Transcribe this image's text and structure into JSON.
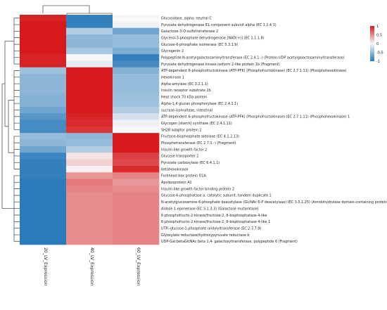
{
  "chart_data": {
    "type": "heatmap",
    "title": "",
    "columns": [
      "20_LV_Expression",
      "40_LV_Expression",
      "60_LV_Expression"
    ],
    "rows": [
      "Glucosidase, alpha; neutral C",
      "Pyruvate dehydrogenase E1 component subunit alpha (EC 1.2.4.1)",
      "Galactose-3-O-sulfotransferase 2",
      "Glycerol-3-phosphate dehydrogenase [NAD(+)] (EC 1.1.1.8)",
      "Glucose-6-phosphate isomerase (EC 5.3.1.9)",
      "Glycogenin 2",
      "Polypeptide N-acetylgalactosaminyltransferase (EC 2.4.1.-) (Protein-UDP acetylgalactosaminyltransferase)",
      "Pyruvate dehydrogenase kinase isoform 2-like protein 1b (Fragment)",
      "ATP-dependent 6-phosphofructokinase (ATP-PFK) (Phosphofructokinase) (EC 2.7.1.11) (Phosphohexokinase)",
      "Hexokinase 1",
      "Alpha-amylase (EC 3.2.1.1)",
      "Insulin receptor substrate 2b",
      "Heat shock 70 kDa protein",
      "Alpha-1,4 glucan phosphorylase (EC 2.4.1.1)",
      "sucrase-isomaltase, intestinal",
      "ATP-dependent 6-phosphofructokinase (ATP-PFK) (Phosphofructokinase) (EC 2.7.1.11) (Phosphohexokinase) 1",
      "Glycogen [starch] synthase (EC 2.4.1.11)",
      "SH2B adaptor protein 2",
      "Fructose-bisphosphate aldolase (EC 4.1.2.13)",
      "Phosphotransferase (EC 2.7.1.-) (Fragment)",
      "Insulin-like growth factor 2",
      "Glucose transporter 2",
      "Pyruvate carboxylase (EC 6.4.1.1)",
      "Ketohexokinase",
      "Forkhead box protein O1A",
      "Apolipoprotein A1",
      "Insulin-like growth factor binding protein 2",
      "Glucose-6-phosphatase a, catalytic subunit, tandem duplicate 1",
      "N-acetylglucosamine-6-phosphate deacetylase (GlcNAc 6-P deacetylase) (EC 3.5.1.25) (Amidohydrolase domain-containing protein 2)",
      "Aldose 1-epimerase (EC 5.1.3.3) (Galactose mutarotase)",
      "6-phosphofructo-2-kinase/fructose-2, 6-bisphosphatase 4-like",
      "6-phosphofructo-2-kinase/fructose-2, 6-bisphosphatase 4-like 1",
      "UTP--glucose-1-phosphate uridylyltransferase (EC 2.7.7.9)",
      "Glyoxylate reductase/hydroxypyruvate reductase b",
      "UDP-Gal:betaGlcNAc beta 1,4- galactosyltransferase, polypeptide 6 (Fragment)"
    ],
    "values": [
      [
        1.1,
        -1.1,
        0.0
      ],
      [
        1.15,
        -1.1,
        -0.05
      ],
      [
        1.15,
        -0.4,
        -0.75
      ],
      [
        1.15,
        -0.6,
        -0.55
      ],
      [
        1.15,
        -0.6,
        -0.55
      ],
      [
        1.15,
        -0.45,
        -0.7
      ],
      [
        1.1,
        0.0,
        -1.1
      ],
      [
        1.1,
        -0.1,
        -1.0
      ],
      [
        -0.5,
        1.15,
        -0.65
      ],
      [
        -0.6,
        1.15,
        -0.55
      ],
      [
        -0.6,
        1.15,
        -0.55
      ],
      [
        -0.6,
        1.15,
        -0.55
      ],
      [
        -0.65,
        1.15,
        -0.5
      ],
      [
        -0.65,
        1.15,
        -0.5
      ],
      [
        -0.75,
        1.15,
        -0.4
      ],
      [
        -0.9,
        1.1,
        -0.2
      ],
      [
        -1.0,
        1.05,
        -0.05
      ],
      [
        -1.0,
        1.0,
        0.0
      ],
      [
        -0.55,
        -0.6,
        1.15
      ],
      [
        -0.6,
        -0.55,
        1.15
      ],
      [
        -0.75,
        -0.4,
        1.15
      ],
      [
        -1.05,
        0.1,
        0.95
      ],
      [
        -1.1,
        0.2,
        0.9
      ],
      [
        -1.1,
        0.05,
        1.05
      ],
      [
        -1.1,
        0.5,
        0.6
      ],
      [
        -1.15,
        0.65,
        0.5
      ],
      [
        -1.15,
        0.6,
        0.55
      ],
      [
        -1.15,
        0.55,
        0.6
      ],
      [
        -1.15,
        0.55,
        0.6
      ],
      [
        -1.15,
        0.55,
        0.6
      ],
      [
        -1.15,
        0.55,
        0.6
      ],
      [
        -1.15,
        0.55,
        0.6
      ],
      [
        -1.15,
        0.55,
        0.6
      ],
      [
        -1.15,
        0.55,
        0.6
      ],
      [
        -1.15,
        0.55,
        0.6
      ]
    ],
    "color_scale": {
      "low": "#2b7bba",
      "mid": "#f7f7f7",
      "high": "#d7191c",
      "ticks": [
        1,
        0.5,
        0,
        -0.5,
        -1
      ],
      "tick_labels": [
        "1",
        "0.5",
        "0",
        "-0.5",
        "-1"
      ],
      "range": [
        -1.15,
        1.15
      ]
    },
    "clustering": {
      "row_dendrogram": true,
      "column_dendrogram": true
    },
    "legend_placement": "top-right"
  }
}
